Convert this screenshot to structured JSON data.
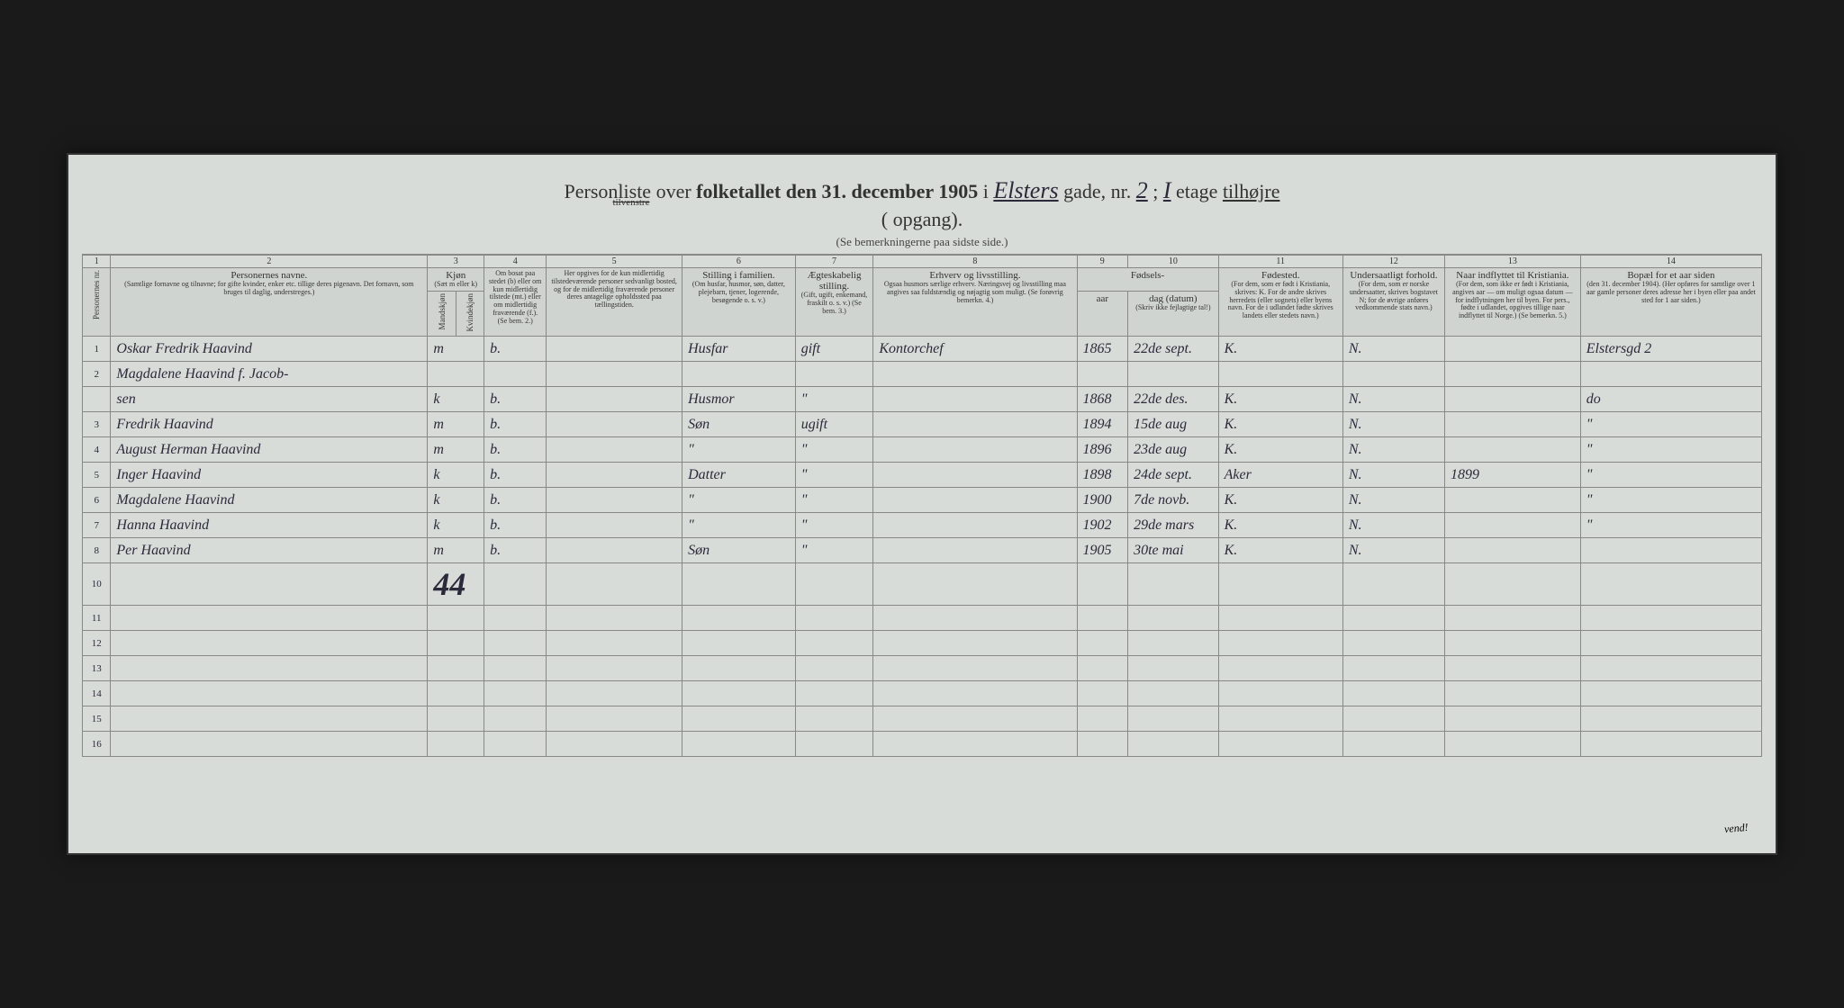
{
  "title": {
    "prefix": "Personliste over",
    "bold_part": "folketallet den 31. december 1905",
    "connector": "i",
    "street_name": "Elsters",
    "street_label": "gade, nr.",
    "street_nr": "2",
    "floor_prefix": ";",
    "floor_nr": "I",
    "floor_label": "etage",
    "direction_right": "tilhøjre",
    "direction_left": "tilvenstre",
    "entrance_open": "(",
    "entrance_label": "opgang).",
    "subtitle": "(Se bemerkningerne paa sidste side.)"
  },
  "column_numbers": [
    "1",
    "2",
    "3",
    "4",
    "5",
    "6",
    "7",
    "8",
    "9",
    "10",
    "11",
    "12",
    "13",
    "14"
  ],
  "headers": {
    "person_nr": "Personernes nr.",
    "name": "Personernes navne.",
    "name_sub": "(Samtlige fornavne og tilnavne; for gifte kvinder, enker etc. tillige deres pigenavn. Det fornavn, som bruges til daglig, understreges.)",
    "sex": "Kjøn",
    "sex_sub": "(Sæt m eller k)",
    "sex_m": "Mandskjøn",
    "sex_k": "Kvindekjøn",
    "residence": "Om bosat paa stedet (b) eller om kun midlertidig tilstede (mt.) eller om midlertidig fraværende (f.). (Se bem. 2.)",
    "temp_addr": "Her opgives for de kun midlertidig tilstedeværende personer sedvanligt bosted, og for de midlertidig fraværende personer deres antagelige opholdssted paa tællingstiden.",
    "position": "Stilling i familien.",
    "position_sub": "(Om husfar, husmor, søn, datter, plejebarn, tjener, logerende, besøgende o. s. v.)",
    "marital": "Ægteskabelig stilling.",
    "marital_sub": "(Gift, ugift, enkemand, fraskilt o. s. v.) (Se bem. 3.)",
    "occupation": "Erhverv og livsstilling.",
    "occupation_sub": "Ogsaa husmors særlige erhverv. Næringsvej og livsstilling maa angives saa fuldstændig og nøjagtig som muligt. (Se forøvrig bemerkn. 4.)",
    "birth": "Fødsels-",
    "birth_year": "aar",
    "birth_date": "dag (datum)",
    "birth_sub": "(Skriv ikke fejlagtige tal!)",
    "birthplace": "Fødested.",
    "birthplace_sub": "(For dem, som er født i Kristiania, skrives: K. For de andre skrives herredets (eller sognets) eller byens navn. For de i udlandet fødte skrives landets eller stedets navn.)",
    "citizenship": "Undersaatligt forhold.",
    "citizenship_sub": "(For dem, som er norske undersaatter, skrives bogstavet N; for de øvrige anføres vedkommende stats navn.)",
    "moved": "Naar indflyttet til Kristiania.",
    "moved_sub": "(For dem, som ikke er født i Kristiania, angives aar — om muligt ogsaa datum — for indflytningen her til byen. For pers., fødte i udlandet, opgives tillige naar indflyttet til Norge.) (Se bemerkn. 5.)",
    "prev_addr": "Bopæl for et aar siden",
    "prev_addr_sub": "(den 31. december 1904). (Her opføres for samtlige over 1 aar gamle personer deres adresse her i byen eller paa andet sted for 1 aar siden.)"
  },
  "rows": [
    {
      "nr": "1",
      "name": "Oskar Fredrik Haavind",
      "sex": "m",
      "res": "b.",
      "temp": "",
      "pos": "Husfar",
      "mar": "gift",
      "occ": "Kontorchef",
      "year": "1865",
      "date": "22de sept.",
      "place": "K.",
      "cit": "N.",
      "moved": "",
      "prev": "Elstersgd 2"
    },
    {
      "nr": "2",
      "name": "Magdalene Haavind f. Jacob-",
      "sex": "",
      "res": "",
      "temp": "",
      "pos": "",
      "mar": "",
      "occ": "",
      "year": "",
      "date": "",
      "place": "",
      "cit": "",
      "moved": "",
      "prev": ""
    },
    {
      "nr": "",
      "name": "sen",
      "sex": "k",
      "res": "b.",
      "temp": "",
      "pos": "Husmor",
      "mar": "\"",
      "occ": "",
      "year": "1868",
      "date": "22de des.",
      "place": "K.",
      "cit": "N.",
      "moved": "",
      "prev": "do"
    },
    {
      "nr": "3",
      "name": "Fredrik Haavind",
      "sex": "m",
      "res": "b.",
      "temp": "",
      "pos": "Søn",
      "mar": "ugift",
      "occ": "",
      "year": "1894",
      "date": "15de aug",
      "place": "K.",
      "cit": "N.",
      "moved": "",
      "prev": "\""
    },
    {
      "nr": "4",
      "name": "August Herman Haavind",
      "sex": "m",
      "res": "b.",
      "temp": "",
      "pos": "\"",
      "mar": "\"",
      "occ": "",
      "year": "1896",
      "date": "23de aug",
      "place": "K.",
      "cit": "N.",
      "moved": "",
      "prev": "\""
    },
    {
      "nr": "5",
      "name": "Inger Haavind",
      "sex": "k",
      "res": "b.",
      "temp": "",
      "pos": "Datter",
      "mar": "\"",
      "occ": "",
      "year": "1898",
      "date": "24de sept.",
      "place": "Aker",
      "cit": "N.",
      "moved": "1899",
      "prev": "\""
    },
    {
      "nr": "6",
      "name": "Magdalene Haavind",
      "sex": "k",
      "res": "b.",
      "temp": "",
      "pos": "\"",
      "mar": "\"",
      "occ": "",
      "year": "1900",
      "date": "7de novb.",
      "place": "K.",
      "cit": "N.",
      "moved": "",
      "prev": "\""
    },
    {
      "nr": "7",
      "name": "Hanna Haavind",
      "sex": "k",
      "res": "b.",
      "temp": "",
      "pos": "\"",
      "mar": "\"",
      "occ": "",
      "year": "1902",
      "date": "29de mars",
      "place": "K.",
      "cit": "N.",
      "moved": "",
      "prev": "\""
    },
    {
      "nr": "8",
      "name": "Per Haavind",
      "sex": "m",
      "res": "b.",
      "temp": "",
      "pos": "Søn",
      "mar": "\"",
      "occ": "",
      "year": "1905",
      "date": "30te mai",
      "place": "K.",
      "cit": "N.",
      "moved": "",
      "prev": ""
    }
  ],
  "empty_rows": [
    "10",
    "11",
    "12",
    "13",
    "14",
    "15",
    "16"
  ],
  "annotation": "44",
  "vend_text": "vend!",
  "colors": {
    "bg": "#1a1a1a",
    "paper": "#d8dcd8",
    "ink": "#2a2a3a",
    "border": "#888"
  }
}
